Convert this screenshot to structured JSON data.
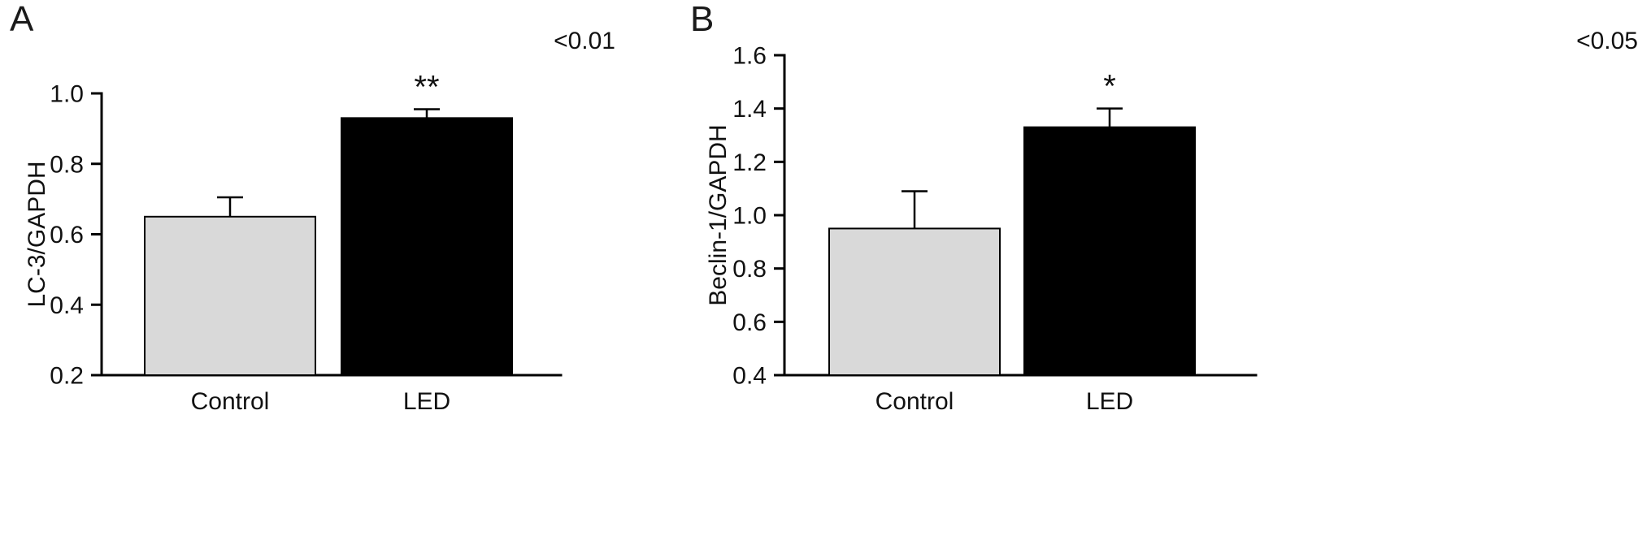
{
  "figure": {
    "background": "#ffffff",
    "axis_color": "#000000",
    "control_bar_fill": "#d9d9d9",
    "led_bar_fill": "#000000"
  },
  "chart_data": [
    {
      "type": "bar",
      "panel_label": "A",
      "p_value_note": "<0.01",
      "title": "",
      "xlabel": "",
      "ylabel": "LC-3/GAPDH",
      "ylim": [
        0.2,
        1.0
      ],
      "yticks": [
        0.2,
        0.4,
        0.6,
        0.8,
        1.0
      ],
      "categories": [
        "Control",
        "LED"
      ],
      "values": [
        0.65,
        0.93
      ],
      "errors_upper": [
        0.055,
        0.025
      ],
      "bar_colors": [
        "#d9d9d9",
        "#000000"
      ],
      "significance_labels": [
        "",
        "**"
      ],
      "grid": false,
      "legend": "none"
    },
    {
      "type": "bar",
      "panel_label": "B",
      "p_value_note": "<0.05",
      "title": "",
      "xlabel": "",
      "ylabel": "Beclin-1/GAPDH",
      "ylim": [
        0.4,
        1.6
      ],
      "yticks": [
        0.4,
        0.6,
        0.8,
        1.0,
        1.2,
        1.4,
        1.6
      ],
      "categories": [
        "Control",
        "LED"
      ],
      "values": [
        0.95,
        1.33
      ],
      "errors_upper": [
        0.14,
        0.07
      ],
      "bar_colors": [
        "#d9d9d9",
        "#000000"
      ],
      "significance_labels": [
        "",
        "*"
      ],
      "grid": false,
      "legend": "none"
    }
  ]
}
